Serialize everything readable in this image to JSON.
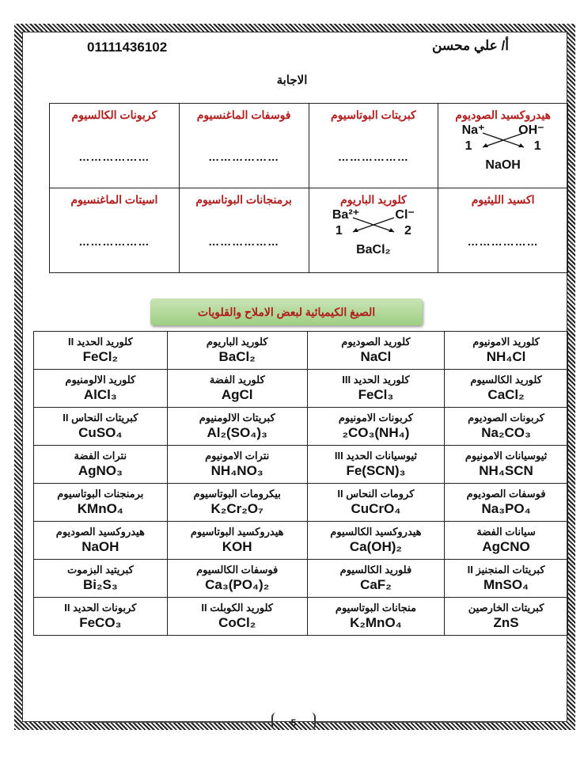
{
  "header": {
    "phone": "01111436102",
    "teacher": "أ/ علي محسن",
    "answer_title": "الاجابة"
  },
  "exercise": {
    "rows": [
      [
        {
          "name": "هيدروكسيد الصوديوم",
          "worked": {
            "cation": "Na⁺",
            "anion": "OH⁻",
            "left": "1",
            "right": "1",
            "result": "NaOH"
          }
        },
        {
          "name": "كبريتات البوتاسيوم",
          "answer": "………………"
        },
        {
          "name": "فوسفات الماغنسيوم",
          "answer": "………………"
        },
        {
          "name": "كربونات الكالسيوم",
          "answer": "………………"
        }
      ],
      [
        {
          "name": "اكسيد الليثيوم",
          "answer": "………………"
        },
        {
          "name": "كلوريد الباريوم",
          "worked": {
            "cation": "Ba²⁺",
            "anion": "Cl⁻",
            "left": "1",
            "right": "2",
            "result": "BaCl₂"
          }
        },
        {
          "name": "برمنجانات البوتاسيوم",
          "answer": "………………"
        },
        {
          "name": "اسيتات الماغنسيوم",
          "answer": "………………"
        }
      ]
    ]
  },
  "banner": "الصيغ الكيميائية لبعض الاملاح والقلويات",
  "formulas": [
    [
      [
        "كلوريد الامونيوم",
        "NH₄Cl"
      ],
      [
        "كلوريد الصوديوم",
        "NaCl"
      ],
      [
        "كلوريد الباريوم",
        "BaCl₂"
      ],
      [
        "كلوريد الحديد II",
        "FeCl₂"
      ]
    ],
    [
      [
        "كلوريد الكالسيوم",
        "CaCl₂"
      ],
      [
        "كلوريد الحديد III",
        "FeCl₃"
      ],
      [
        "كلوريد الفضة",
        "AgCl"
      ],
      [
        "كلوريد الالومنيوم",
        "AlCl₃"
      ]
    ],
    [
      [
        "كربونات الصوديوم",
        "Na₂CO₃"
      ],
      [
        "كربونات الامونيوم",
        "(NH₄)₂CO₃"
      ],
      [
        "كبريتات الالومنيوم",
        "Al₂(SO₄)₃"
      ],
      [
        "كبريتات النحاس II",
        "CuSO₄"
      ]
    ],
    [
      [
        "ثيوسيانات الامونيوم",
        "NH₄SCN"
      ],
      [
        "ثيوسيانات الحديد III",
        "Fe(SCN)₃"
      ],
      [
        "نترات الامونيوم",
        "NH₄NO₃"
      ],
      [
        "نترات الفضة",
        "AgNO₃"
      ]
    ],
    [
      [
        "فوسفات الصوديوم",
        "Na₃PO₄"
      ],
      [
        "كرومات النحاس II",
        "CuCrO₄"
      ],
      [
        "بيكرومات البوتاسيوم",
        "K₂Cr₂O₇"
      ],
      [
        "برمنجنات البوتاسيوم",
        "KMnO₄"
      ]
    ],
    [
      [
        "سيانات الفضة",
        "AgCNO"
      ],
      [
        "هيدروكسيد الكالسيوم",
        "Ca(OH)₂"
      ],
      [
        "هيدروكسيد البوتاسيوم",
        "KOH"
      ],
      [
        "هيدروكسيد الصوديوم",
        "NaOH"
      ]
    ],
    [
      [
        "كبريتات المنجنيز II",
        "MnSO₄"
      ],
      [
        "فلوريد الكالسيوم",
        "CaF₂"
      ],
      [
        "فوسفات الكالسيوم",
        "Ca₃(PO₄)₂"
      ],
      [
        "كبريتيد البزموت",
        "Bi₂S₃"
      ]
    ],
    [
      [
        "كبريتات الخارصين",
        "ZnS"
      ],
      [
        "منجانات البوتاسيوم",
        "K₂MnO₄"
      ],
      [
        "كلوريد الكوبلت II",
        "CoCl₂"
      ],
      [
        "كربونات الحديد II",
        "FeCO₃"
      ]
    ]
  ],
  "footer": {
    "page_number": "5"
  },
  "colors": {
    "heading_red": "#b01c1c",
    "banner_green": "#a8d48c"
  }
}
